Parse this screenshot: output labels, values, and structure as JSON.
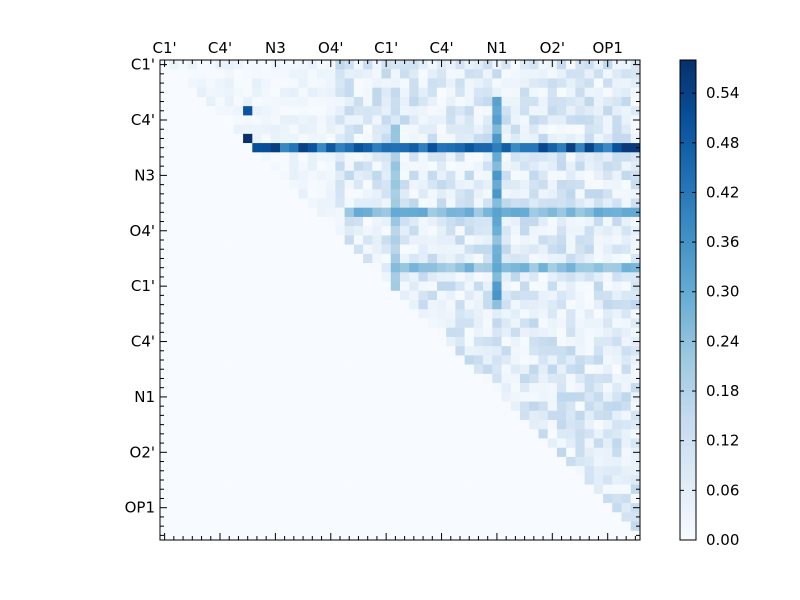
{
  "chart_data": {
    "type": "heatmap",
    "size": 52,
    "x_tick_labels": [
      "C1'",
      "C4'",
      "N3",
      "O4'",
      "C1'",
      "C4'",
      "N1",
      "O2'",
      "OP1"
    ],
    "y_tick_labels": [
      "C1'",
      "C4'",
      "N3",
      "O4'",
      "C1'",
      "C4'",
      "N1",
      "O2'",
      "OP1"
    ],
    "label_positions": [
      0.5,
      6.5,
      12.5,
      18.5,
      24.5,
      30.5,
      36.5,
      42.5,
      48.5
    ],
    "colorscale": "Blues",
    "vmin": 0.0,
    "vmax": 0.58,
    "colorbar_ticks": [
      "0.00",
      "0.06",
      "0.12",
      "0.18",
      "0.24",
      "0.30",
      "0.36",
      "0.42",
      "0.48",
      "0.54"
    ],
    "colorbar_tick_values": [
      0.0,
      0.06,
      0.12,
      0.18,
      0.24,
      0.3,
      0.36,
      0.42,
      0.48,
      0.54
    ],
    "strong_rows": [
      {
        "row": 9,
        "from": 10,
        "to": 51,
        "value": 0.5
      },
      {
        "row": 16,
        "from": 20,
        "to": 51,
        "value": 0.28
      },
      {
        "row": 22,
        "from": 25,
        "to": 51,
        "value": 0.26
      }
    ],
    "strong_cols": [
      {
        "col": 36,
        "from": 4,
        "to": 26,
        "value": 0.32
      },
      {
        "col": 25,
        "from": 7,
        "to": 26,
        "value": 0.22
      }
    ],
    "hot_cells": [
      {
        "row": 5,
        "col": 9,
        "value": 0.5
      },
      {
        "row": 8,
        "col": 9,
        "value": 0.58
      },
      {
        "row": 9,
        "col": 51,
        "value": 0.56
      },
      {
        "row": 9,
        "col": 50,
        "value": 0.56
      }
    ]
  }
}
